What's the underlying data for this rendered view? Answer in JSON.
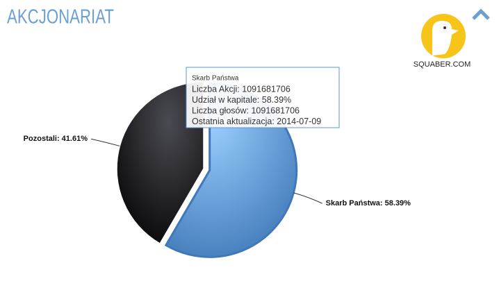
{
  "chart_data": {
    "type": "pie",
    "title": "AKCJONARIAT",
    "categories": [
      "Skarb Państwa",
      "Pozostali"
    ],
    "values": [
      58.39,
      41.61
    ],
    "value_labels": [
      "Skarb Państwa: 58.39%",
      "Pozostali: 41.61%"
    ],
    "colors": [
      "#5b95d6",
      "#1e1e20"
    ],
    "tooltip": {
      "title": "Skarb Państwa",
      "lines": [
        "Liczba Akcji: 1091681706",
        "Udział w kapitale: 58.39%",
        "Liczba głosów: 1091681706",
        "Ostatnia aktualizacja: 2014-07-09"
      ]
    }
  },
  "logo": {
    "text": "SQUABER.COM"
  }
}
